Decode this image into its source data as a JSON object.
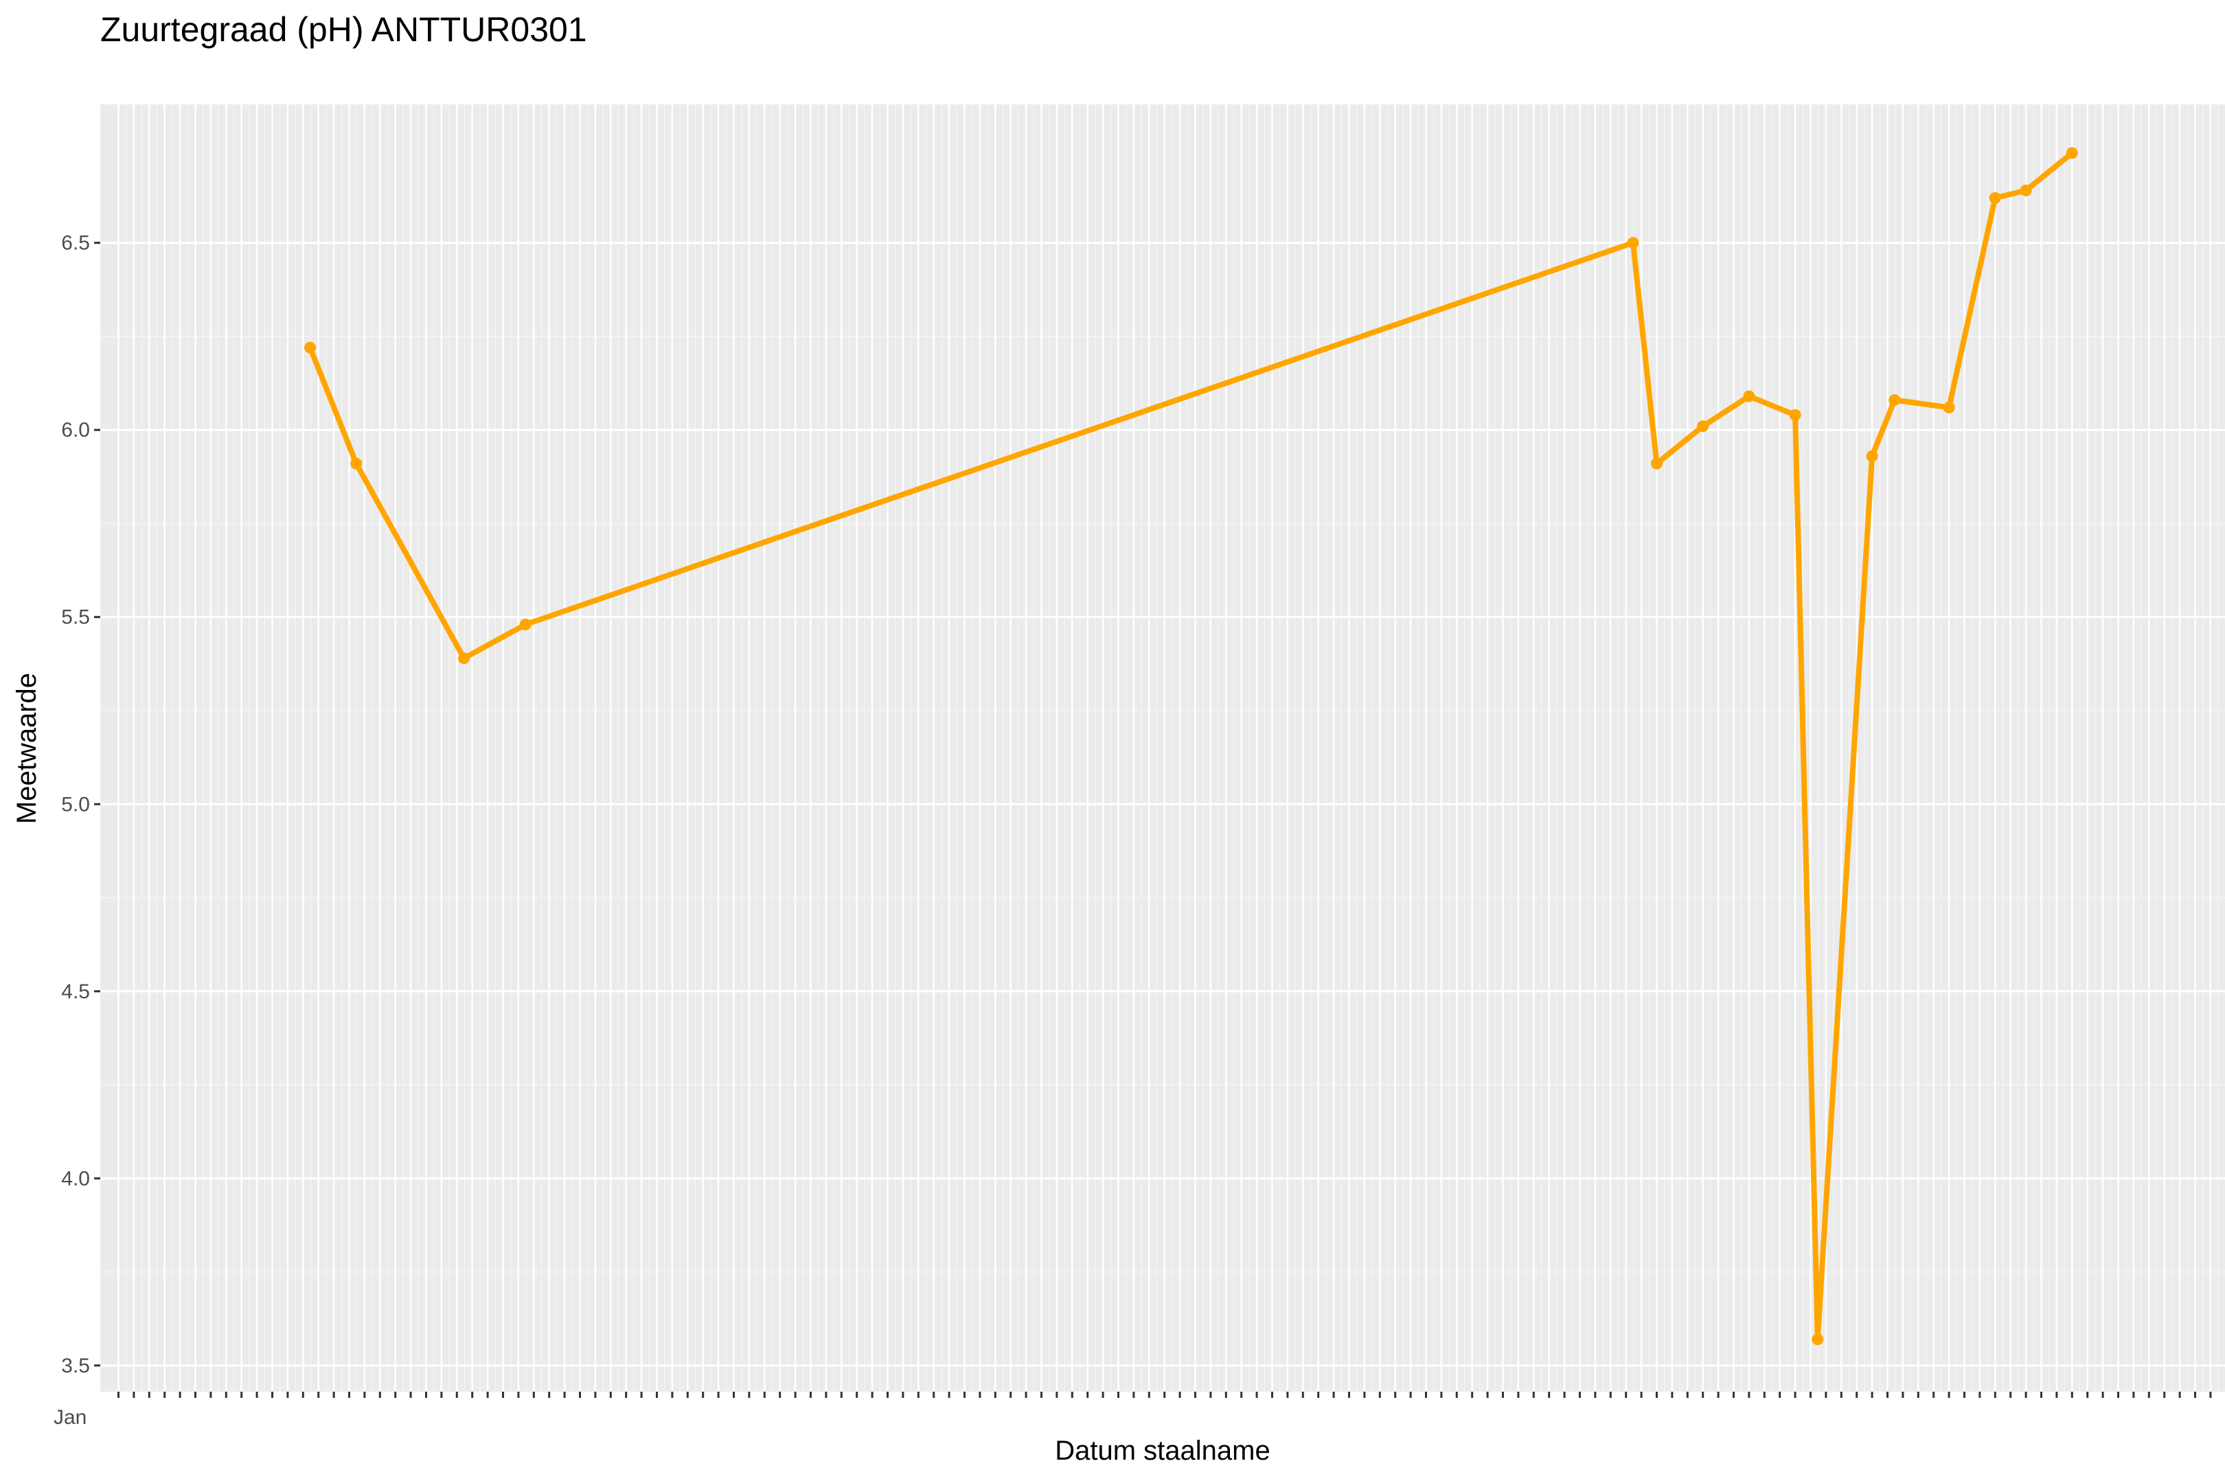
{
  "chart_data": {
    "type": "line",
    "title": "Zuurtegraad (pH) ANTTUR0301",
    "xlabel": "Datum staalname",
    "ylabel": "Meetwaarde",
    "x_scale": "monthly date axis, Jan 2012 – Dec 2022 (overlapping month tick labels)",
    "ylim": [
      3.43,
      6.87
    ],
    "yticks": [
      3.5,
      4.0,
      4.5,
      5.0,
      5.5,
      6.0,
      6.5
    ],
    "ytick_labels": [
      "3.5",
      "4.0",
      "4.5",
      "5.0",
      "5.5",
      "6.0",
      "6.5"
    ],
    "xticks_first_label": "Jan",
    "grid": true,
    "legend": "none",
    "series": [
      {
        "color": "#FFA500",
        "points": [
          {
            "x": "2012-12-15",
            "y": 6.22
          },
          {
            "x": "2013-03-15",
            "y": 5.91
          },
          {
            "x": "2013-10-15",
            "y": 5.39
          },
          {
            "x": "2014-02-15",
            "y": 5.48
          },
          {
            "x": "2020-02-15",
            "y": 6.5
          },
          {
            "x": "2020-04-01",
            "y": 5.91
          },
          {
            "x": "2020-07-01",
            "y": 6.01
          },
          {
            "x": "2020-10-01",
            "y": 6.09
          },
          {
            "x": "2021-01-01",
            "y": 6.04
          },
          {
            "x": "2021-02-15",
            "y": 3.57
          },
          {
            "x": "2021-06-01",
            "y": 5.93
          },
          {
            "x": "2021-07-15",
            "y": 6.08
          },
          {
            "x": "2021-11-01",
            "y": 6.06
          },
          {
            "x": "2022-02-01",
            "y": 6.62
          },
          {
            "x": "2022-04-01",
            "y": 6.64
          },
          {
            "x": "2022-07-01",
            "y": 6.74
          }
        ]
      }
    ]
  }
}
